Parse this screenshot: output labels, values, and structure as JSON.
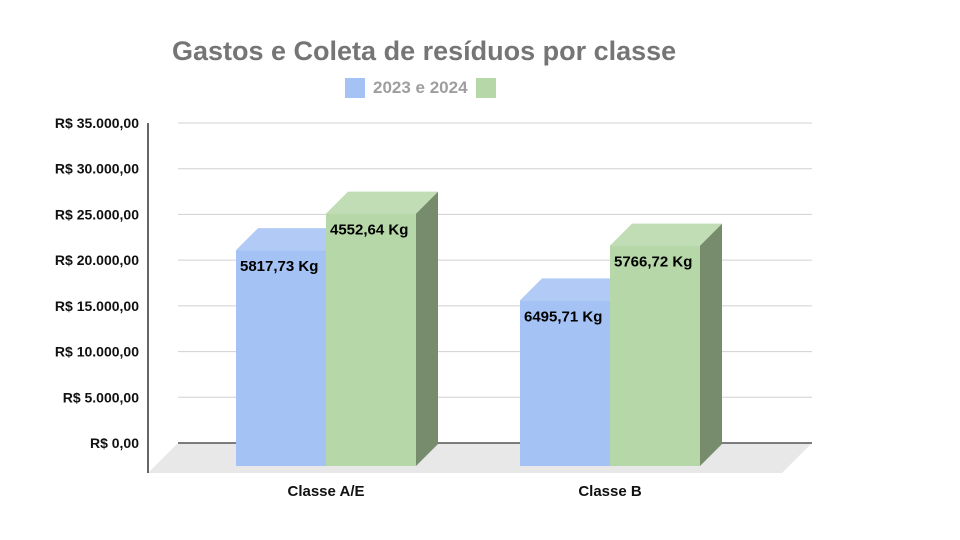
{
  "chart_data": {
    "type": "bar",
    "title": "Gastos e Coleta de resíduos por classe",
    "legend_label": "2023 e 2024",
    "legend_position": "top",
    "categories": [
      "Classe A/E",
      "Classe B"
    ],
    "series": [
      {
        "values": [
          23500,
          18000
        ],
        "labels": [
          "5817,73 Kg",
          "6495,71 Kg"
        ],
        "color": "#a4c2f4"
      },
      {
        "values": [
          27500,
          24000
        ],
        "labels": [
          "4552,64 Kg",
          "5766,72 Kg"
        ],
        "color": "#b6d7a8"
      }
    ],
    "y_ticks": [
      {
        "value": 0,
        "label": "R$ 0,00"
      },
      {
        "value": 5000,
        "label": "R$ 5.000,00"
      },
      {
        "value": 10000,
        "label": "R$ 10.000,00"
      },
      {
        "value": 15000,
        "label": "R$ 15.000,00"
      },
      {
        "value": 20000,
        "label": "R$ 20.000,00"
      },
      {
        "value": 25000,
        "label": "R$ 25.000,00"
      },
      {
        "value": 30000,
        "label": "R$ 30.000,00"
      },
      {
        "value": 35000,
        "label": "R$ 35.000,00"
      }
    ],
    "ylim": [
      0,
      35000
    ],
    "grid": true,
    "style": "3d"
  }
}
